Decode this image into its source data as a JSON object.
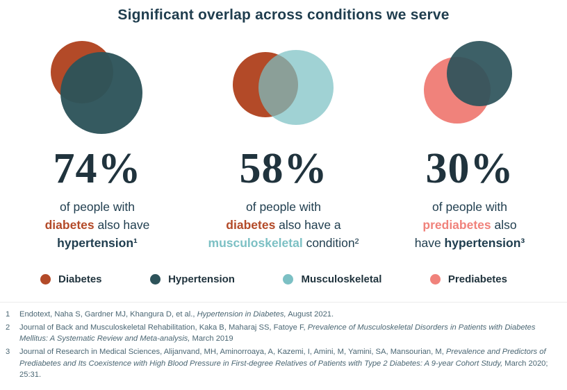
{
  "title": "Significant overlap across conditions we serve",
  "colors": {
    "diabetes": "#b34a28",
    "hypertension": "#2d535a",
    "musculoskeletal": "#7cc0c4",
    "prediabetes": "#f0827b",
    "heading": "#1f3d4e",
    "number": "#20333d",
    "footnote": "#4a6673",
    "divider": "#ececec"
  },
  "chart_data": [
    {
      "type": "pie",
      "value": 74,
      "percent_label": "74%",
      "overlap": [
        "Diabetes",
        "Hypertension"
      ],
      "caption_text": "of people with diabetes also have hypertension",
      "footnote_ref": "1",
      "caption_lines": [
        [
          {
            "text": "of people with"
          }
        ],
        [
          {
            "text": "diabetes",
            "style": "diabetes"
          },
          {
            "text": " also have"
          }
        ],
        [
          {
            "text": "hypertension¹",
            "style": "bold"
          }
        ]
      ]
    },
    {
      "type": "pie",
      "value": 58,
      "percent_label": "58%",
      "overlap": [
        "Diabetes",
        "Musculoskeletal"
      ],
      "caption_text": "of people with diabetes also have a musculoskeletal condition",
      "footnote_ref": "2",
      "caption_lines": [
        [
          {
            "text": "of people with"
          }
        ],
        [
          {
            "text": "diabetes",
            "style": "diabetes"
          },
          {
            "text": " also have a"
          }
        ],
        [
          {
            "text": "musculoskeletal",
            "style": "musculoskeletal"
          },
          {
            "text": " condition²"
          }
        ]
      ]
    },
    {
      "type": "pie",
      "value": 30,
      "percent_label": "30%",
      "overlap": [
        "Prediabetes",
        "Hypertension"
      ],
      "caption_text": "of people with prediabetes also have hypertension",
      "footnote_ref": "3",
      "caption_lines": [
        [
          {
            "text": "of people with"
          }
        ],
        [
          {
            "text": "prediabetes",
            "style": "prediabetes"
          },
          {
            "text": " also"
          }
        ],
        [
          {
            "text": "have "
          },
          {
            "text": "hypertension³",
            "style": "bold"
          }
        ]
      ]
    }
  ],
  "legend": [
    {
      "label": "Diabetes",
      "color_key": "diabetes"
    },
    {
      "label": "Hypertension",
      "color_key": "hypertension"
    },
    {
      "label": "Musculoskeletal",
      "color_key": "musculoskeletal"
    },
    {
      "label": "Prediabetes",
      "color_key": "prediabetes"
    }
  ],
  "footnotes": [
    {
      "num": "1",
      "parts": [
        {
          "text": "Endotext, Naha S, Gardner MJ, Khangura D, et al., ",
          "italic": false
        },
        {
          "text": "Hypertension in Diabetes,",
          "italic": true
        },
        {
          "text": " August 2021.",
          "italic": false
        }
      ]
    },
    {
      "num": "2",
      "parts": [
        {
          "text": "Journal of Back and Musculoskeletal Rehabilitation, Kaka B, Maharaj SS, Fatoye F, ",
          "italic": false
        },
        {
          "text": "Prevalence of Musculoskeletal Disorders in Patients with Diabetes Mellitus: A Systematic Review and Meta-analysis,",
          "italic": true
        },
        {
          "text": " March 2019",
          "italic": false
        }
      ]
    },
    {
      "num": "3",
      "parts": [
        {
          "text": "Journal of Research in Medical Sciences, Alijanvand, MH, Aminorroaya, A, Kazemi, I, Amini, M, Yamini, SA, Mansourian, M, ",
          "italic": false
        },
        {
          "text": "Prevalence and Predictors of Prediabetes and Its Coexistence with High Blood Pressure in First-degree Relatives of Patients with Type 2 Diabetes: A 9-year Cohort Study,",
          "italic": true
        },
        {
          "text": " March 2020; 25:31.",
          "italic": false
        }
      ]
    }
  ]
}
